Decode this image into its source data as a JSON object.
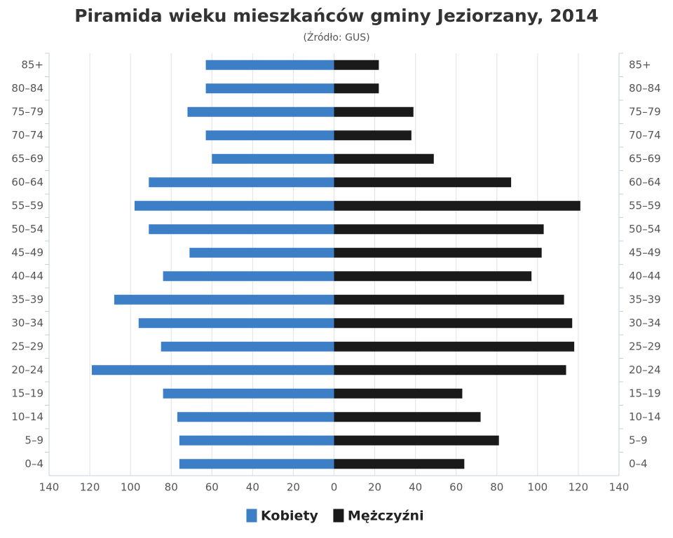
{
  "chart_data": {
    "type": "pyramid",
    "title": "Piramida wieku mieszkańców gminy Jeziorzany, 2014",
    "subtitle": "(Źródło: GUS)",
    "categories": [
      "85+",
      "80–84",
      "75–79",
      "70–74",
      "65–69",
      "60–64",
      "55–59",
      "50–54",
      "45–49",
      "40–44",
      "35–39",
      "30–34",
      "25–29",
      "20–24",
      "15–19",
      "10–14",
      "5–9",
      "0–4"
    ],
    "series": [
      {
        "name": "Kobiety",
        "color": "#3d7fc6",
        "values": [
          -63,
          -63,
          -72,
          -63,
          -60,
          -91,
          -98,
          -91,
          -71,
          -84,
          -108,
          -96,
          -85,
          -119,
          -84,
          -77,
          -76,
          -76
        ]
      },
      {
        "name": "Mężczyźni",
        "color": "#1a1a1a",
        "values": [
          22,
          22,
          39,
          38,
          49,
          87,
          121,
          103,
          102,
          97,
          113,
          117,
          118,
          114,
          63,
          72,
          81,
          64
        ]
      }
    ],
    "xlim": [
      -140,
      140
    ],
    "xticks": [
      {
        "value": -140,
        "label": "140"
      },
      {
        "value": -120,
        "label": "120"
      },
      {
        "value": -100,
        "label": "100"
      },
      {
        "value": -80,
        "label": "80"
      },
      {
        "value": -60,
        "label": "60"
      },
      {
        "value": -40,
        "label": "40"
      },
      {
        "value": -20,
        "label": "20"
      },
      0,
      20,
      40,
      60,
      80,
      100,
      120,
      140
    ],
    "grid": true
  }
}
